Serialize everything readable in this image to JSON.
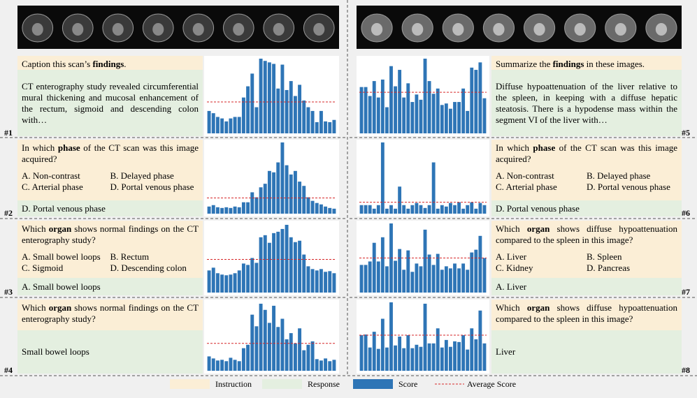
{
  "legend": {
    "instruction": "Instruction",
    "response": "Response",
    "score": "Score",
    "average": "Average Score"
  },
  "panels": [
    {
      "label": "#1",
      "instruction": {
        "pre": "Caption this scan’s ",
        "bold": "findings",
        "post": "."
      },
      "response": "CT enterography study revealed circumferential mural thickening and mucosal enhancement of the rectum, sigmoid and descending colon with…",
      "chart": {
        "type": "bar",
        "ylim": [
          0,
          100
        ],
        "color": "#2e75b6",
        "average_color": "#d62728",
        "average": 42,
        "values": [
          30,
          27,
          22,
          20,
          16,
          20,
          22,
          22,
          48,
          63,
          80,
          35,
          100,
          97,
          95,
          93,
          60,
          92,
          58,
          70,
          50,
          65,
          44,
          35,
          30,
          15,
          30,
          16,
          15,
          18
        ]
      }
    },
    {
      "label": "#2",
      "instruction": {
        "pre": "In which ",
        "bold": "phase",
        "post": " of the CT scan was this image acquired?"
      },
      "options": [
        "A. Non-contrast",
        "B. Delayed phase",
        "C. Arterial phase",
        "D. Portal venous phase"
      ],
      "response": "D. Portal venous phase",
      "chart": {
        "type": "bar",
        "ylim": [
          0,
          100
        ],
        "color": "#2e75b6",
        "average_color": "#d62728",
        "average": 22,
        "values": [
          10,
          12,
          9,
          8,
          9,
          8,
          10,
          9,
          16,
          16,
          30,
          23,
          37,
          42,
          60,
          58,
          72,
          100,
          68,
          55,
          60,
          45,
          39,
          23,
          18,
          15,
          13,
          10,
          8,
          7
        ]
      }
    },
    {
      "label": "#3",
      "instruction": {
        "pre": "Which ",
        "bold": "organ",
        "post": " shows normal findings on the CT enterography study?"
      },
      "options": [
        "A. Small bowel loops",
        "B. Rectum",
        "C. Sigmoid",
        "D. Descending colon"
      ],
      "response": "A. Small bowel loops",
      "chart": {
        "type": "bar",
        "ylim": [
          0,
          100
        ],
        "color": "#2e75b6",
        "average_color": "#d62728",
        "average": 48,
        "values": [
          32,
          36,
          28,
          26,
          25,
          26,
          28,
          32,
          42,
          40,
          50,
          43,
          80,
          83,
          72,
          86,
          88,
          92,
          98,
          80,
          73,
          75,
          55,
          38,
          34,
          32,
          34,
          30,
          31,
          28
        ]
      }
    },
    {
      "label": "#4",
      "instruction": {
        "pre": "Which ",
        "bold": "organ",
        "post": " shows normal findings on the CT enterography study?"
      },
      "response": "Small bowel loops",
      "chart": {
        "type": "bar",
        "ylim": [
          0,
          100
        ],
        "color": "#2e75b6",
        "average_color": "#d62728",
        "average": 40,
        "values": [
          21,
          18,
          15,
          16,
          14,
          19,
          16,
          14,
          33,
          38,
          82,
          65,
          98,
          89,
          70,
          95,
          64,
          76,
          46,
          55,
          40,
          62,
          30,
          38,
          43,
          17,
          15,
          18,
          14,
          16
        ]
      }
    },
    {
      "label": "#5",
      "instruction": {
        "pre": "Summarize the ",
        "bold": "findings",
        "post": " in these images."
      },
      "response": "Diffuse hypoattenuation of the liver relative to the spleen, in keeping with a diffuse hepatic steatosis. There is a hypodense mass within the segment VI of the liver with…",
      "chart": {
        "type": "bar",
        "ylim": [
          0,
          100
        ],
        "color": "#2e75b6",
        "average_color": "#d62728",
        "average": 55,
        "values": [
          62,
          62,
          50,
          70,
          48,
          72,
          35,
          90,
          63,
          85,
          48,
          67,
          42,
          52,
          45,
          100,
          70,
          53,
          60,
          38,
          40,
          33,
          42,
          42,
          60,
          30,
          88,
          85,
          95,
          47
        ]
      }
    },
    {
      "label": "#6",
      "instruction": {
        "pre": "In which ",
        "bold": "phase",
        "post": " of the CT scan was this image acquired?"
      },
      "options": [
        "A. Non-contrast",
        "B. Delayed phase",
        "C. Arterial phase",
        "D. Portal venous phase"
      ],
      "response": "D. Portal venous phase",
      "chart": {
        "type": "bar",
        "ylim": [
          0,
          100
        ],
        "color": "#2e75b6",
        "average_color": "#d62728",
        "average": 16,
        "values": [
          12,
          12,
          12,
          7,
          12,
          100,
          7,
          12,
          7,
          38,
          12,
          7,
          12,
          15,
          12,
          8,
          12,
          72,
          7,
          12,
          10,
          15,
          12,
          16,
          7,
          12,
          16,
          7,
          15,
          12
        ]
      }
    },
    {
      "label": "#7",
      "instruction": {
        "pre": "Which ",
        "bold": "organ",
        "post": " shows diffuse hypoattenuation compared to the spleen in this image?"
      },
      "options": [
        "A. Liver",
        "B. Spleen",
        "C. Kidney",
        "D. Pancreas"
      ],
      "response": "A. Liver",
      "chart": {
        "type": "bar",
        "ylim": [
          0,
          100
        ],
        "color": "#2e75b6",
        "average_color": "#d62728",
        "average": 50,
        "values": [
          40,
          40,
          45,
          72,
          45,
          80,
          38,
          100,
          46,
          63,
          33,
          61,
          30,
          42,
          38,
          91,
          55,
          40,
          56,
          33,
          38,
          35,
          42,
          35,
          42,
          33,
          58,
          62,
          82,
          50
        ]
      }
    },
    {
      "label": "#8",
      "instruction": {
        "pre": "Which ",
        "bold": "organ",
        "post": " shows diffuse hypoattenuation compared to the spleen in this image?"
      },
      "response": "Liver",
      "chart": {
        "type": "bar",
        "ylim": [
          0,
          100
        ],
        "color": "#2e75b6",
        "average_color": "#d62728",
        "average": 52,
        "values": [
          52,
          53,
          34,
          57,
          32,
          76,
          34,
          100,
          37,
          50,
          33,
          52,
          33,
          38,
          35,
          98,
          40,
          40,
          62,
          34,
          45,
          35,
          43,
          42,
          52,
          31,
          62,
          46,
          88,
          40
        ]
      }
    }
  ]
}
